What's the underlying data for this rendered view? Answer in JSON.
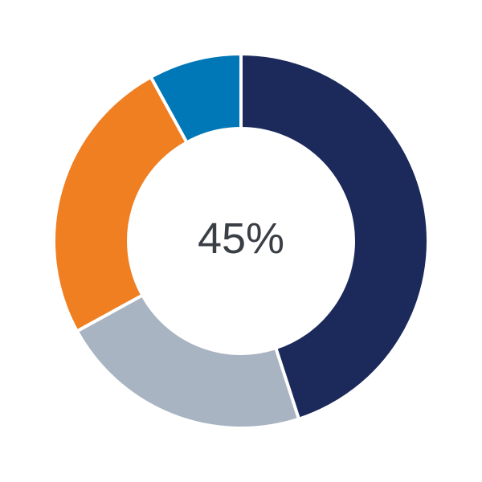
{
  "chart_data": {
    "type": "pie",
    "variant": "donut",
    "center_label": "45%",
    "start": "top",
    "direction": "clockwise",
    "slices": [
      {
        "value": 45,
        "color": "#1b2a5a"
      },
      {
        "value": 22,
        "color": "#a9b4c2"
      },
      {
        "value": 25,
        "color": "#f07f22"
      },
      {
        "value": 8,
        "color": "#0077b6"
      }
    ]
  }
}
